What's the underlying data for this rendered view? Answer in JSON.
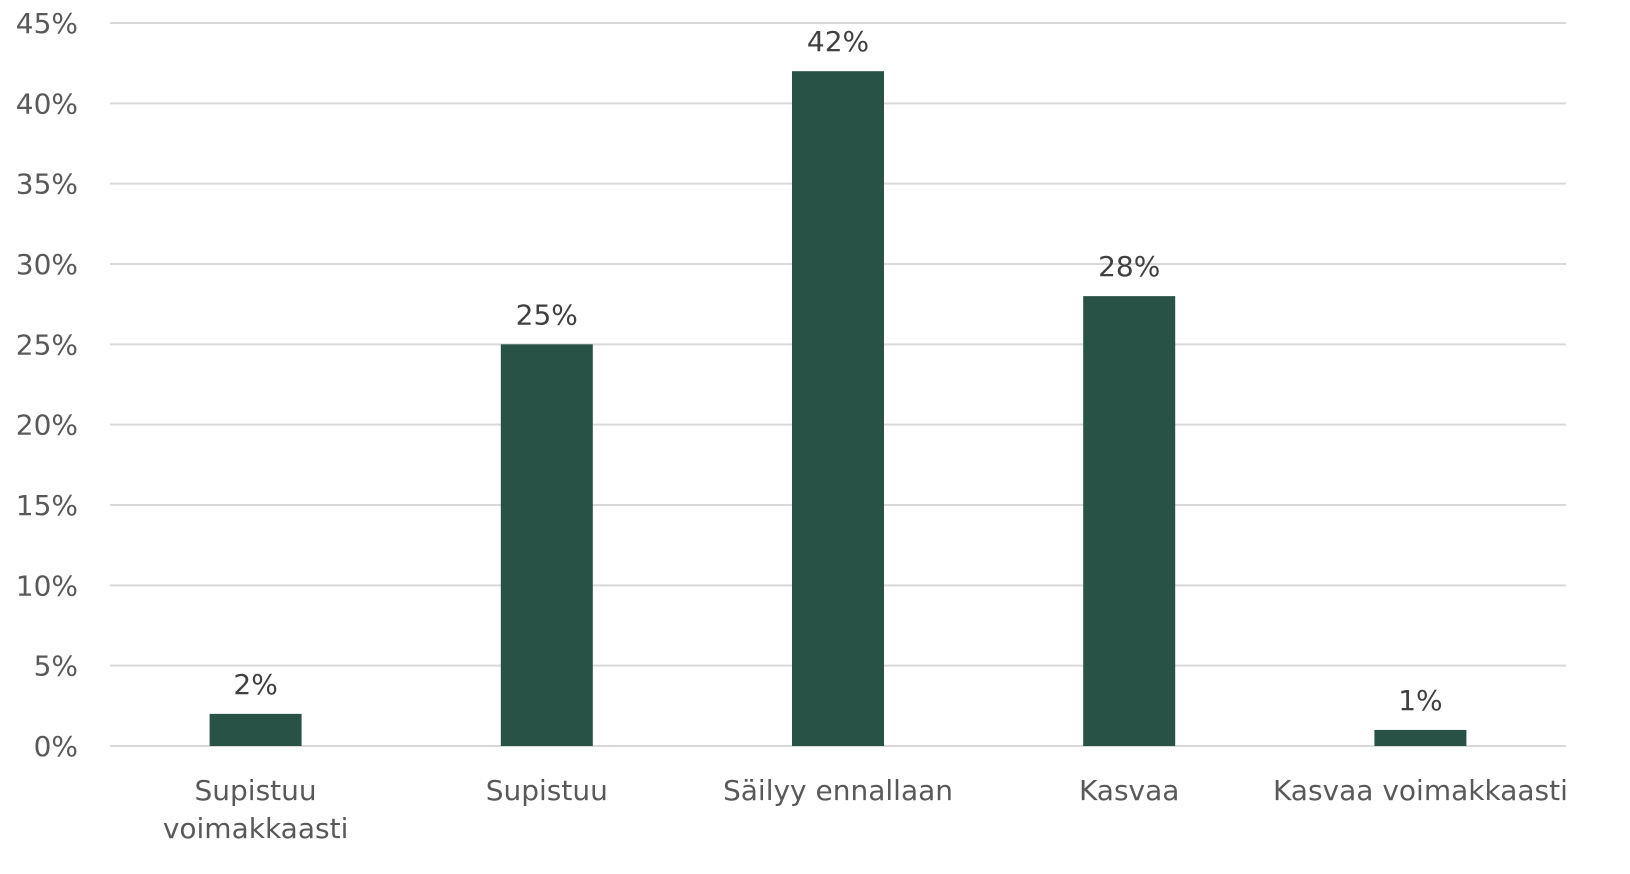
{
  "chart_data": {
    "type": "bar",
    "title": "",
    "xlabel": "",
    "ylabel": "",
    "categories": [
      "Supistuu voimakkaasti",
      "Supistuu",
      "Säilyy ennallaan",
      "Kasvaa",
      "Kasvaa voimakkaasti"
    ],
    "category_lines": [
      [
        "Supistuu",
        "voimakkaasti"
      ],
      [
        "Supistuu"
      ],
      [
        "Säilyy ennallaan"
      ],
      [
        "Kasvaa"
      ],
      [
        "Kasvaa voimakkaasti"
      ]
    ],
    "values": [
      2,
      25,
      42,
      28,
      1
    ],
    "data_labels": [
      "2%",
      "25%",
      "42%",
      "28%",
      "1%"
    ],
    "ylim": [
      0,
      45
    ],
    "y_ticks": [
      {
        "value": 0,
        "label": "0%"
      },
      {
        "value": 5,
        "label": "5%"
      },
      {
        "value": 10,
        "label": "10%"
      },
      {
        "value": 15,
        "label": "15%"
      },
      {
        "value": 20,
        "label": "20%"
      },
      {
        "value": 25,
        "label": "25%"
      },
      {
        "value": 30,
        "label": "30%"
      },
      {
        "value": 35,
        "label": "35%"
      },
      {
        "value": 40,
        "label": "40%"
      },
      {
        "value": 45,
        "label": "45%"
      }
    ],
    "grid": true,
    "legend": "none",
    "bar_color": "#285246"
  }
}
